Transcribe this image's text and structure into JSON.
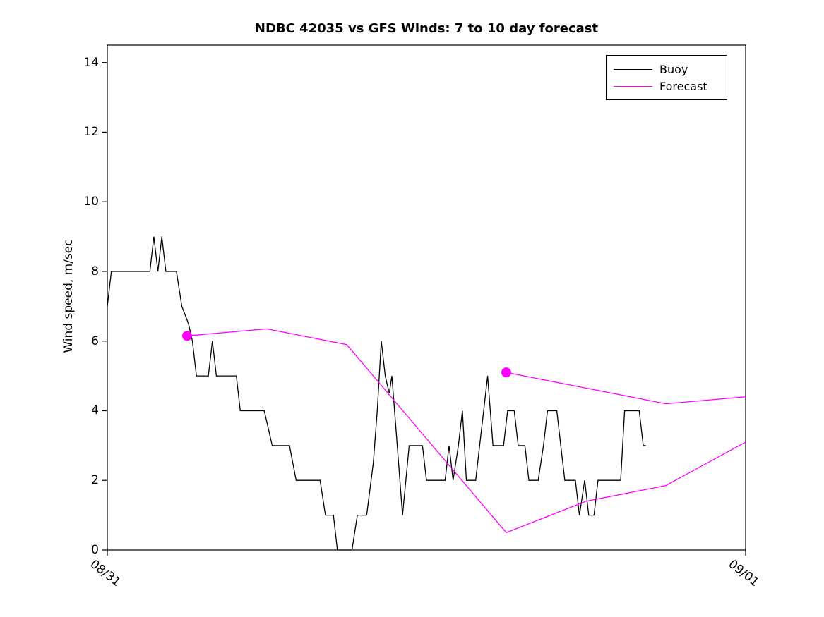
{
  "chart_data": {
    "type": "line",
    "title": "NDBC 42035 vs GFS Winds: 7 to 10 day forecast",
    "ylabel": "Wind speed, m/sec",
    "xlabel": "",
    "ylim": [
      0,
      14.5
    ],
    "yticks": [
      0,
      2,
      4,
      6,
      8,
      10,
      12,
      14
    ],
    "xlim_hours": [
      0,
      24
    ],
    "xticks": [
      {
        "hour": 0,
        "label": "08/31"
      },
      {
        "hour": 24,
        "label": "09/01"
      }
    ],
    "grid": false,
    "legend": {
      "position": "top-right",
      "entries": [
        {
          "label": "Buoy",
          "color": "#000000"
        },
        {
          "label": "Forecast",
          "color": "#FF00FF"
        }
      ]
    },
    "series": [
      {
        "name": "Buoy",
        "color": "#000000",
        "marker_first_point": false,
        "points": [
          [
            0,
            7
          ],
          [
            0.15,
            8
          ],
          [
            1.6,
            8
          ],
          [
            1.75,
            9
          ],
          [
            1.9,
            8
          ],
          [
            2.05,
            9
          ],
          [
            2.2,
            8
          ],
          [
            2.6,
            8
          ],
          [
            2.8,
            7
          ],
          [
            3.05,
            6.5
          ],
          [
            3.2,
            6
          ],
          [
            3.35,
            5
          ],
          [
            3.8,
            5
          ],
          [
            3.95,
            6
          ],
          [
            4.1,
            5
          ],
          [
            4.85,
            5
          ],
          [
            5.0,
            4
          ],
          [
            5.9,
            4
          ],
          [
            6.05,
            3.5
          ],
          [
            6.2,
            3
          ],
          [
            6.85,
            3
          ],
          [
            7.1,
            2
          ],
          [
            8.0,
            2
          ],
          [
            8.2,
            1
          ],
          [
            8.5,
            1
          ],
          [
            8.65,
            0
          ],
          [
            9.2,
            0
          ],
          [
            9.4,
            1
          ],
          [
            9.75,
            1
          ],
          [
            10.0,
            2.5
          ],
          [
            10.15,
            4
          ],
          [
            10.3,
            6
          ],
          [
            10.45,
            5
          ],
          [
            10.6,
            4.5
          ],
          [
            10.7,
            5
          ],
          [
            10.9,
            3
          ],
          [
            11.1,
            1
          ],
          [
            11.35,
            3
          ],
          [
            11.85,
            3
          ],
          [
            12.0,
            2
          ],
          [
            12.7,
            2
          ],
          [
            12.85,
            3
          ],
          [
            13.0,
            2
          ],
          [
            13.2,
            3
          ],
          [
            13.35,
            4
          ],
          [
            13.5,
            2
          ],
          [
            13.85,
            2
          ],
          [
            14.0,
            3
          ],
          [
            14.15,
            4
          ],
          [
            14.3,
            5
          ],
          [
            14.5,
            3
          ],
          [
            14.9,
            3
          ],
          [
            15.05,
            4
          ],
          [
            15.3,
            4
          ],
          [
            15.45,
            3
          ],
          [
            15.7,
            3
          ],
          [
            15.85,
            2
          ],
          [
            16.2,
            2
          ],
          [
            16.4,
            3
          ],
          [
            16.55,
            4
          ],
          [
            16.9,
            4
          ],
          [
            17.05,
            3
          ],
          [
            17.2,
            2
          ],
          [
            17.6,
            2
          ],
          [
            17.75,
            1
          ],
          [
            17.95,
            2
          ],
          [
            18.1,
            1
          ],
          [
            18.3,
            1
          ],
          [
            18.45,
            2
          ],
          [
            19.3,
            2
          ],
          [
            19.45,
            4
          ],
          [
            20.0,
            4
          ],
          [
            20.15,
            3
          ],
          [
            20.25,
            3
          ]
        ]
      },
      {
        "name": "Forecast run 1",
        "color": "#FF00FF",
        "marker_first_point": true,
        "points": [
          [
            3,
            6.15
          ],
          [
            6,
            6.35
          ],
          [
            9,
            5.9
          ],
          [
            12,
            3.2
          ],
          [
            15,
            0.5
          ],
          [
            18,
            1.4
          ],
          [
            21,
            1.85
          ],
          [
            24,
            3.1
          ]
        ]
      },
      {
        "name": "Forecast run 2",
        "color": "#FF00FF",
        "marker_first_point": true,
        "points": [
          [
            15,
            5.1
          ],
          [
            18,
            4.65
          ],
          [
            21,
            4.2
          ],
          [
            24,
            4.4
          ]
        ]
      }
    ]
  }
}
